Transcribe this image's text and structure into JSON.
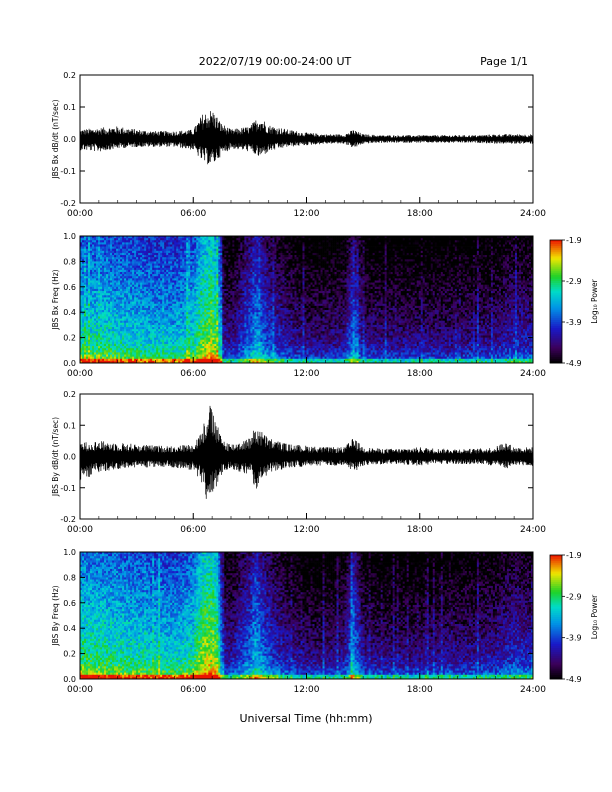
{
  "header": {
    "title": "2022/07/19  00:00-24:00 UT",
    "page": "Page 1/1"
  },
  "xaxis": {
    "label": "Universal Time (hh:mm)",
    "ticks": [
      "00:00",
      "06:00",
      "12:00",
      "18:00",
      "24:00"
    ]
  },
  "colorbar": {
    "label": "Log₁₀ Power",
    "ticks": [
      "-1.9",
      "-2.9",
      "-3.9",
      "-4.9"
    ],
    "range": [
      -4.9,
      -1.9
    ],
    "colormap": "rainbow (black-purple-blue-cyan-green-yellow-red)"
  },
  "chart_data": [
    {
      "type": "line",
      "ylabel": "JBS Bx dB/dt (nT/sec)",
      "ylim": [
        -0.2,
        0.2
      ],
      "yticks": [
        "0.2",
        "0.1",
        "0.0",
        "-0.1",
        "-0.2"
      ],
      "xlim_hours": [
        0,
        24
      ],
      "envelope": {
        "x_hours": [
          0,
          1,
          2,
          3,
          4,
          5,
          6,
          6.5,
          7,
          7.5,
          8,
          9,
          9.5,
          10,
          11,
          12,
          13,
          14,
          14.5,
          15,
          16,
          17,
          18,
          19,
          20,
          21,
          22,
          23,
          24
        ],
        "max": [
          0.03,
          0.035,
          0.04,
          0.03,
          0.025,
          0.025,
          0.03,
          0.08,
          0.095,
          0.05,
          0.03,
          0.04,
          0.075,
          0.045,
          0.03,
          0.02,
          0.015,
          0.015,
          0.03,
          0.015,
          0.012,
          0.012,
          0.012,
          0.012,
          0.012,
          0.012,
          0.015,
          0.015,
          0.015
        ],
        "min": [
          -0.035,
          -0.04,
          -0.03,
          -0.025,
          -0.025,
          -0.025,
          -0.035,
          -0.075,
          -0.085,
          -0.05,
          -0.03,
          -0.04,
          -0.06,
          -0.04,
          -0.025,
          -0.02,
          -0.015,
          -0.015,
          -0.03,
          -0.015,
          -0.012,
          -0.012,
          -0.012,
          -0.012,
          -0.012,
          -0.012,
          -0.015,
          -0.015,
          -0.015
        ]
      }
    },
    {
      "type": "heatmap",
      "ylabel": "JBS Bx Freq (Hz)",
      "ylim": [
        0.0,
        1.0
      ],
      "yticks": [
        "1.0",
        "0.8",
        "0.6",
        "0.4",
        "0.2",
        "0.0"
      ],
      "xlim_hours": [
        0,
        24
      ],
      "activity": {
        "x_hours": [
          0,
          1,
          2,
          3,
          4,
          5,
          6,
          6.5,
          7,
          7.3,
          7.6,
          8,
          9,
          9.3,
          10,
          11,
          12,
          13,
          14,
          14.5,
          15,
          16,
          18,
          20,
          22,
          23,
          24
        ],
        "level": [
          0.62,
          0.62,
          0.6,
          0.58,
          0.56,
          0.55,
          0.6,
          0.75,
          0.78,
          0.72,
          0.25,
          0.22,
          0.4,
          0.5,
          0.35,
          0.25,
          0.2,
          0.2,
          0.22,
          0.45,
          0.22,
          0.2,
          0.2,
          0.2,
          0.22,
          0.28,
          0.25
        ]
      }
    },
    {
      "type": "line",
      "ylabel": "JBS By dB/dt (nT/sec)",
      "ylim": [
        -0.2,
        0.2
      ],
      "yticks": [
        "0.2",
        "0.1",
        "0.0",
        "-0.1",
        "-0.2"
      ],
      "xlim_hours": [
        0,
        24
      ],
      "envelope": {
        "x_hours": [
          0,
          1,
          2,
          3,
          4,
          5,
          6,
          6.5,
          6.8,
          7,
          7.5,
          8,
          9,
          9.3,
          10,
          11,
          12,
          13,
          14,
          14.5,
          15,
          16,
          17,
          18,
          19,
          20,
          21,
          22,
          22.5,
          23,
          24
        ],
        "max": [
          0.045,
          0.05,
          0.045,
          0.04,
          0.035,
          0.035,
          0.04,
          0.09,
          0.18,
          0.15,
          0.06,
          0.04,
          0.06,
          0.1,
          0.06,
          0.04,
          0.035,
          0.03,
          0.03,
          0.06,
          0.03,
          0.025,
          0.025,
          0.03,
          0.025,
          0.025,
          0.025,
          0.03,
          0.05,
          0.03,
          0.03
        ],
        "min": [
          -0.08,
          -0.05,
          -0.04,
          -0.035,
          -0.035,
          -0.035,
          -0.045,
          -0.09,
          -0.17,
          -0.13,
          -0.06,
          -0.04,
          -0.06,
          -0.11,
          -0.05,
          -0.04,
          -0.03,
          -0.03,
          -0.03,
          -0.05,
          -0.03,
          -0.025,
          -0.025,
          -0.03,
          -0.025,
          -0.025,
          -0.025,
          -0.03,
          -0.04,
          -0.03,
          -0.03
        ]
      }
    },
    {
      "type": "heatmap",
      "ylabel": "JBS By Freq (Hz)",
      "ylim": [
        0.0,
        1.0
      ],
      "yticks": [
        "1.0",
        "0.8",
        "0.6",
        "0.4",
        "0.2",
        "0.0"
      ],
      "xlim_hours": [
        0,
        24
      ],
      "activity": {
        "x_hours": [
          0,
          1,
          2,
          3,
          4,
          5,
          6,
          6.5,
          7,
          7.3,
          7.6,
          8,
          9,
          9.3,
          10,
          11,
          12,
          13,
          14,
          14.5,
          15,
          16,
          18,
          20,
          22,
          23,
          24
        ],
        "level": [
          0.68,
          0.66,
          0.64,
          0.62,
          0.6,
          0.58,
          0.64,
          0.8,
          0.82,
          0.76,
          0.28,
          0.25,
          0.42,
          0.52,
          0.36,
          0.26,
          0.2,
          0.2,
          0.24,
          0.48,
          0.24,
          0.2,
          0.2,
          0.22,
          0.25,
          0.32,
          0.28
        ]
      }
    }
  ]
}
